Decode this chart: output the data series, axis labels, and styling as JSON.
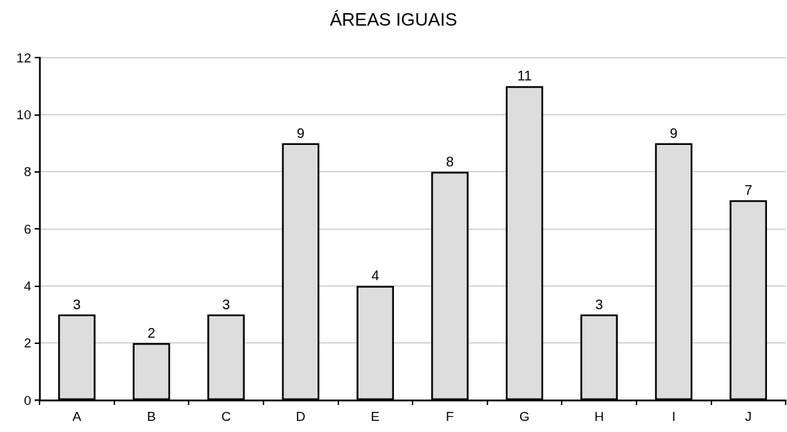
{
  "chart_data": {
    "type": "bar",
    "title": "ÁREAS IGUAIS",
    "categories": [
      "A",
      "B",
      "C",
      "D",
      "E",
      "F",
      "G",
      "H",
      "I",
      "J"
    ],
    "values": [
      3,
      2,
      3,
      9,
      4,
      8,
      11,
      3,
      9,
      7
    ],
    "color": "#dddddd",
    "ylim": [
      0,
      12
    ],
    "yticks": [
      0,
      2,
      4,
      6,
      8,
      10,
      12
    ],
    "grid": "y",
    "data_labels": true
  }
}
